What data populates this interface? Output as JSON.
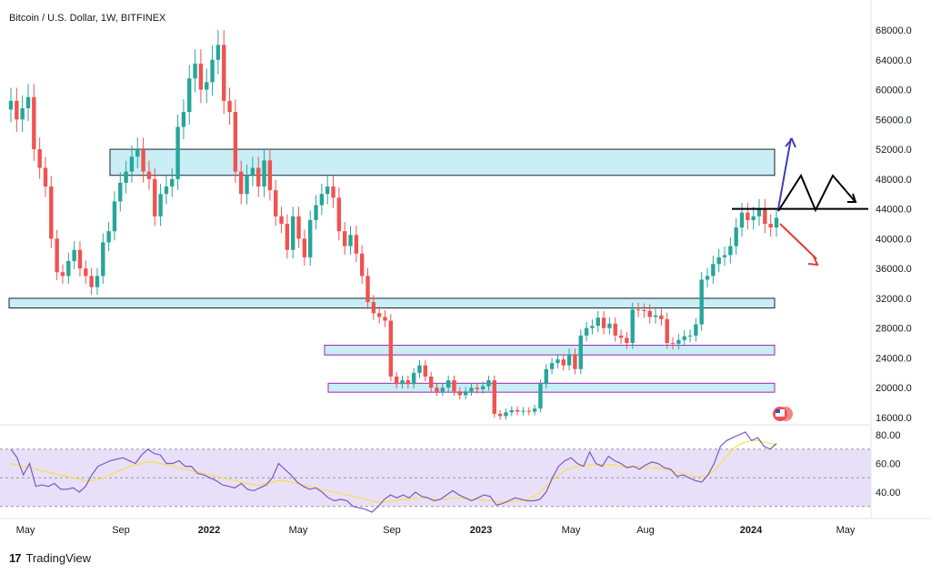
{
  "header": {
    "title": "Bitcoin / U.S. Dollar, 1W, BITFINEX"
  },
  "footer": {
    "brand": "TradingView",
    "logo_text": "17"
  },
  "colors": {
    "up": "#26a69a",
    "down": "#ef5350",
    "zone_fill": "#c9eef5",
    "zone_stroke_dark": "#1e222d",
    "zone_stroke_purple": "#9c27b0",
    "rsi_line": "#7e57c2",
    "rsi_ma": "#f5e050",
    "rsi_band": "#e8e0f8",
    "arrow_up": "#3f3fb4",
    "arrow_down": "#e53935",
    "arrow_side": "#000000"
  },
  "chart_data": [
    {
      "type": "candlestick",
      "title": "Bitcoin / U.S. Dollar, 1W, BITFINEX",
      "yticks": [
        "68000.0",
        "64000.0",
        "60000.0",
        "56000.0",
        "52000.0",
        "48000.0",
        "44000.0",
        "40000.0",
        "36000.0",
        "32000.0",
        "28000.0",
        "24000.0",
        "20000.0",
        "16000.0"
      ],
      "xticks": [
        "May",
        "Sep",
        "2022",
        "May",
        "Sep",
        "2023",
        "May",
        "Aug",
        "2024",
        "May"
      ],
      "ylim": [
        15000,
        70000
      ],
      "grid": false,
      "candles_close": [
        58500,
        56000,
        57500,
        59000,
        52000,
        49500,
        47000,
        40000,
        35500,
        35000,
        37000,
        38500,
        36000,
        35000,
        33500,
        35000,
        39500,
        41000,
        45000,
        47500,
        49000,
        51000,
        52000,
        49000,
        48000,
        43000,
        46000,
        47000,
        48000,
        55000,
        57000,
        61500,
        63500,
        60000,
        61000,
        64000,
        66000,
        58500,
        57000,
        49000,
        46000,
        48500,
        49500,
        47000,
        50500,
        46500,
        43000,
        42000,
        38500,
        43000,
        40000,
        37500,
        42500,
        44500,
        46000,
        47000,
        45500,
        41000,
        39000,
        40500,
        38000,
        35000,
        31500,
        30000,
        29500,
        29000,
        21500,
        20500,
        21000,
        20500,
        22000,
        23000,
        21500,
        20000,
        19500,
        20000,
        21000,
        19500,
        19000,
        19500,
        20000,
        19800,
        20200,
        21000,
        16500,
        16200,
        16700,
        17000,
        16800,
        16900,
        16800,
        17200,
        20500,
        22500,
        23300,
        23800,
        23000,
        24500,
        22500,
        27000,
        28000,
        28300,
        29400,
        28000,
        28600,
        27000,
        26700,
        26000,
        30500,
        30400,
        30300,
        29500,
        29700,
        29200,
        26000,
        25900,
        26400,
        26900,
        27000,
        28500,
        34500,
        35000,
        36600,
        37500,
        37800,
        39000,
        41500,
        43500,
        42500,
        43000,
        44000,
        42000,
        41500,
        42800
      ]
    },
    {
      "type": "line",
      "title": "RSI",
      "yticks": [
        "80.00",
        "60.00",
        "40.00"
      ],
      "ylim": [
        25,
        90
      ],
      "series": [
        {
          "values": [
            70,
            64,
            52,
            60,
            44,
            45,
            44,
            46,
            42,
            42,
            43,
            40,
            44,
            52,
            58,
            60,
            62,
            63,
            64,
            62,
            60,
            66,
            70,
            67,
            66,
            60,
            60,
            62,
            58,
            58,
            53,
            52,
            50,
            48,
            45,
            44,
            43,
            46,
            42,
            41,
            43,
            45,
            50,
            60,
            56,
            52,
            47,
            44,
            42,
            43,
            40,
            36,
            34,
            35,
            34,
            30,
            29,
            28,
            26,
            30,
            35,
            38,
            36,
            38,
            36,
            40,
            37,
            36,
            34,
            35,
            38,
            41,
            38,
            36,
            34,
            36,
            38,
            37,
            31,
            32,
            34,
            36,
            35,
            34,
            34,
            35,
            40,
            50,
            58,
            62,
            64,
            60,
            58,
            68,
            60,
            58,
            65,
            62,
            60,
            57,
            58,
            56,
            59,
            61,
            60,
            57,
            56,
            51,
            52,
            50,
            48,
            47,
            52,
            60,
            72,
            76,
            78,
            80,
            82,
            76,
            78,
            72,
            70,
            74
          ]
        },
        {
          "values": [
            60,
            59,
            58,
            57,
            56,
            55,
            54,
            53,
            52,
            51,
            50,
            49,
            48,
            48,
            49,
            50,
            52,
            54,
            56,
            58,
            59,
            60,
            61,
            61,
            60,
            59,
            58,
            57,
            56,
            55,
            54,
            53,
            52,
            51,
            50,
            49,
            48,
            47,
            46,
            45,
            45,
            46,
            47,
            48,
            48,
            47,
            46,
            45,
            44,
            43,
            42,
            41,
            40,
            39,
            38,
            37,
            36,
            35,
            34,
            33,
            33,
            34,
            34,
            35,
            35,
            36,
            36,
            36,
            35,
            35,
            35,
            36,
            36,
            36,
            35,
            35,
            34,
            34,
            33,
            33,
            33,
            34,
            34,
            35,
            37,
            40,
            44,
            48,
            52,
            55,
            57,
            58,
            58,
            59,
            59,
            59,
            59,
            59,
            58,
            58,
            58,
            58,
            57,
            57,
            57,
            56,
            55,
            54,
            53,
            52,
            51,
            51,
            52,
            55,
            60,
            65,
            70,
            73,
            75,
            76,
            76,
            75,
            74,
            73
          ]
        }
      ]
    }
  ]
}
